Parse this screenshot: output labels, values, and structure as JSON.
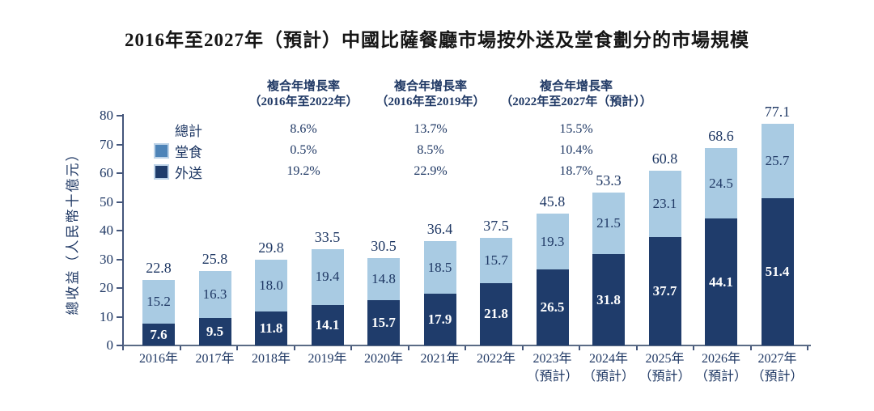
{
  "title": "2016年至2027年（預計）中國比薩餐廳市場按外送及堂食劃分的市場規模",
  "colors": {
    "text_navy": "#1F3864",
    "bar_delivery_dark": "#1F3C6B",
    "bar_dinein_light": "#A9CBE3",
    "legend_dinein_swatch": "#4E84B8",
    "legend_delivery_swatch": "#1F3C6B",
    "axis_line": "#44567B"
  },
  "chart_data": {
    "type": "bar",
    "stacked": true,
    "title": "2016年至2027年（預計）中國比薩餐廳市場按外送及堂食劃分的市場規模",
    "ylabel": "總收益（人民幣十億元）",
    "ylim": [
      0,
      80
    ],
    "yticks": [
      0,
      10,
      20,
      30,
      40,
      50,
      60,
      70,
      80
    ],
    "grid": false,
    "legend_position": "top-left",
    "categories": [
      "2016年",
      "2017年",
      "2018年",
      "2019年",
      "2020年",
      "2021年",
      "2022年",
      "2023年",
      "2024年",
      "2025年",
      "2026年",
      "2027年"
    ],
    "category_suffixes": [
      "",
      "",
      "",
      "",
      "",
      "",
      "",
      "（預計）",
      "（預計）",
      "（預計）",
      "（預計）",
      "（預計）"
    ],
    "series": [
      {
        "name": "外送",
        "color_key": "bar_delivery_dark",
        "values": [
          7.6,
          9.5,
          11.8,
          14.1,
          15.7,
          17.9,
          21.8,
          26.5,
          31.8,
          37.7,
          44.1,
          51.4
        ],
        "labels": [
          "7.6",
          "9.5",
          "11.8",
          "14.1",
          "15.7",
          "17.9",
          "21.8",
          "26.5",
          "31.8",
          "37.7",
          "44.1",
          "51.4"
        ]
      },
      {
        "name": "堂食",
        "color_key": "bar_dinein_light",
        "values": [
          15.2,
          16.3,
          18.0,
          19.4,
          14.8,
          18.5,
          15.7,
          19.3,
          21.5,
          23.1,
          24.5,
          25.7
        ],
        "labels": [
          "15.2",
          "16.3",
          "18.0",
          "19.4",
          "14.8",
          "18.5",
          "15.7",
          "19.3",
          "21.5",
          "23.1",
          "24.5",
          "25.7"
        ]
      }
    ],
    "totals": [
      22.8,
      25.8,
      29.8,
      33.5,
      30.5,
      36.4,
      37.5,
      45.8,
      53.3,
      60.8,
      68.6,
      77.1
    ],
    "total_labels": [
      "22.8",
      "25.8",
      "29.8",
      "33.5",
      "30.5",
      "36.4",
      "37.5",
      "45.8",
      "53.3",
      "60.8",
      "68.6",
      "77.1"
    ],
    "legend": [
      {
        "label": "總計",
        "swatch": "none"
      },
      {
        "label": "堂食",
        "swatch": "dinein"
      },
      {
        "label": "外送",
        "swatch": "delivery"
      }
    ],
    "cagr_columns": [
      {
        "header_line1": "複合年增長率",
        "header_line2": "（2016年至2022年）",
        "values": [
          "8.6%",
          "0.5%",
          "19.2%"
        ]
      },
      {
        "header_line1": "複合年增長率",
        "header_line2": "（2016年至2019年）",
        "values": [
          "13.7%",
          "8.5%",
          "22.9%"
        ]
      },
      {
        "header_line1": "複合年增長率",
        "header_line2": "（2022年至2027年（預計））",
        "values": [
          "15.5%",
          "10.4%",
          "18.7%"
        ]
      }
    ]
  }
}
